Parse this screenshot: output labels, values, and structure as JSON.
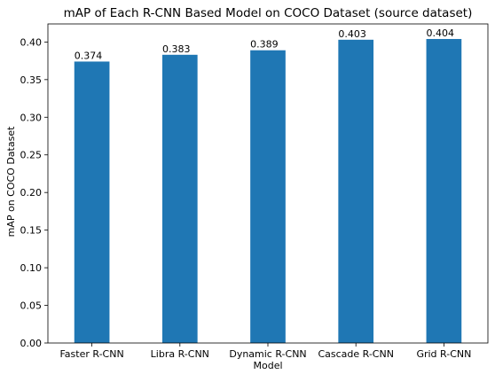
{
  "chart_data": {
    "type": "bar",
    "title": "mAP of Each R-CNN Based Model on COCO Dataset (source dataset)",
    "xlabel": "Model",
    "ylabel": "mAP on COCO Dataset",
    "categories": [
      "Faster R-CNN",
      "Libra R-CNN",
      "Dynamic R-CNN",
      "Cascade R-CNN",
      "Grid R-CNN"
    ],
    "values": [
      0.374,
      0.383,
      0.389,
      0.403,
      0.404
    ],
    "data_labels": [
      "0.374",
      "0.383",
      "0.389",
      "0.403",
      "0.404"
    ],
    "ylim": [
      0,
      0.424
    ],
    "yticks": [
      0.0,
      0.05,
      0.1,
      0.15,
      0.2,
      0.25,
      0.3,
      0.35,
      0.4
    ],
    "ytick_labels": [
      "0.00",
      "0.05",
      "0.10",
      "0.15",
      "0.20",
      "0.25",
      "0.30",
      "0.35",
      "0.40"
    ],
    "grid": false,
    "bar_color": "#1f77b4"
  }
}
